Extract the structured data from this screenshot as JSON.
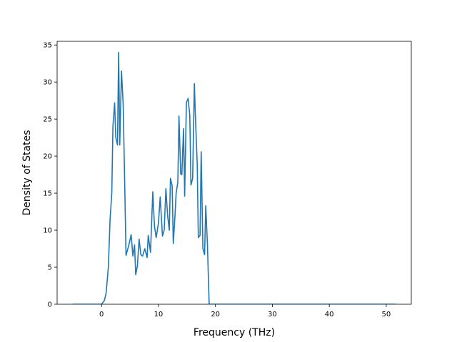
{
  "chart_data": {
    "type": "line",
    "title": "",
    "xlabel": "Frequency (THz)",
    "ylabel": "Density of States",
    "xlim": [
      -7.8,
      54.4
    ],
    "ylim": [
      0,
      35.5
    ],
    "x_ticks": [
      0,
      10,
      20,
      30,
      40,
      50
    ],
    "y_ticks": [
      0,
      5,
      10,
      15,
      20,
      25,
      30,
      35
    ],
    "x_tick_labels": [
      "0",
      "10",
      "20",
      "30",
      "40",
      "50"
    ],
    "y_tick_labels": [
      "0",
      "5",
      "10",
      "15",
      "20",
      "25",
      "30",
      "35"
    ],
    "grid": false,
    "legend": "none",
    "series": [
      {
        "color": "#1f77b4",
        "points": [
          [
            -5,
            0
          ],
          [
            0,
            0
          ],
          [
            0.5,
            0.5
          ],
          [
            0.8,
            1.5
          ],
          [
            1.2,
            5
          ],
          [
            1.5,
            11.5
          ],
          [
            1.8,
            15
          ],
          [
            2,
            24
          ],
          [
            2.3,
            27.2
          ],
          [
            2.5,
            22.5
          ],
          [
            2.8,
            21.5
          ],
          [
            3,
            34
          ],
          [
            3.2,
            21.5
          ],
          [
            3.5,
            31.5
          ],
          [
            3.8,
            27
          ],
          [
            4.1,
            15
          ],
          [
            4.3,
            6.6
          ],
          [
            4.8,
            8
          ],
          [
            5.2,
            9.4
          ],
          [
            5.5,
            6.5
          ],
          [
            5.8,
            8
          ],
          [
            6,
            4
          ],
          [
            6.3,
            5.2
          ],
          [
            6.6,
            8.8
          ],
          [
            6.9,
            6.7
          ],
          [
            7.2,
            6.5
          ],
          [
            7.6,
            7.5
          ],
          [
            8,
            6.3
          ],
          [
            8.2,
            9.3
          ],
          [
            8.6,
            7
          ],
          [
            9,
            15.2
          ],
          [
            9.3,
            10.5
          ],
          [
            9.6,
            9
          ],
          [
            10,
            11
          ],
          [
            10.3,
            14.5
          ],
          [
            10.7,
            9.2
          ],
          [
            11,
            10
          ],
          [
            11.3,
            15.6
          ],
          [
            11.6,
            12
          ],
          [
            11.9,
            10
          ],
          [
            12.1,
            17
          ],
          [
            12.4,
            16
          ],
          [
            12.6,
            8.2
          ],
          [
            12.9,
            12
          ],
          [
            13.1,
            15
          ],
          [
            13.4,
            16.5
          ],
          [
            13.6,
            25.4
          ],
          [
            13.9,
            17.6
          ],
          [
            14.1,
            17.5
          ],
          [
            14.4,
            23.7
          ],
          [
            14.6,
            14.6
          ],
          [
            14.9,
            27.2
          ],
          [
            15.2,
            27.8
          ],
          [
            15.5,
            25.5
          ],
          [
            15.7,
            16.1
          ],
          [
            16,
            17
          ],
          [
            16.3,
            29.8
          ],
          [
            16.5,
            25
          ],
          [
            16.8,
            19
          ],
          [
            17,
            9
          ],
          [
            17.3,
            9.3
          ],
          [
            17.5,
            20.6
          ],
          [
            17.8,
            7.5
          ],
          [
            18.1,
            6.7
          ],
          [
            18.3,
            13.3
          ],
          [
            18.6,
            8
          ],
          [
            18.9,
            0
          ],
          [
            20,
            0
          ],
          [
            30,
            0
          ],
          [
            40,
            0
          ],
          [
            51.6,
            0
          ]
        ]
      }
    ]
  }
}
